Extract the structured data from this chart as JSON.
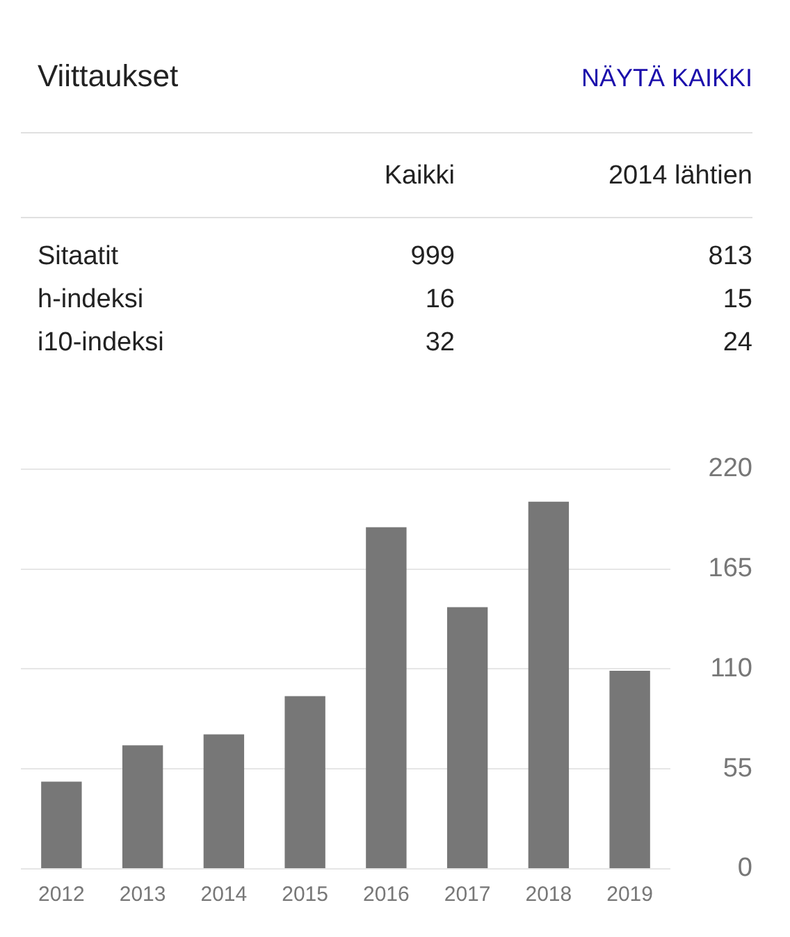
{
  "chart_data": [
    {
      "type": "other",
      "title": "Viittaukset",
      "annotations": [
        "NÄYTÄ KAIKKI",
        "Kaikki",
        "2014 lähtien",
        "Sitaatit",
        "999",
        "813",
        "h-indeksi",
        "16",
        "15",
        "i10-indeksi",
        "32",
        "24"
      ]
    },
    {
      "type": "bar",
      "categories": [
        "2012",
        "2013",
        "2014",
        "2015",
        "2016",
        "2017",
        "2018",
        "2019"
      ],
      "values": [
        48,
        68,
        74,
        95,
        188,
        144,
        202,
        109
      ],
      "color": "#777777",
      "ylim": [
        0,
        220
      ],
      "yticks": [
        0,
        55,
        110,
        165,
        220
      ],
      "grid": "y",
      "legend": false
    }
  ]
}
